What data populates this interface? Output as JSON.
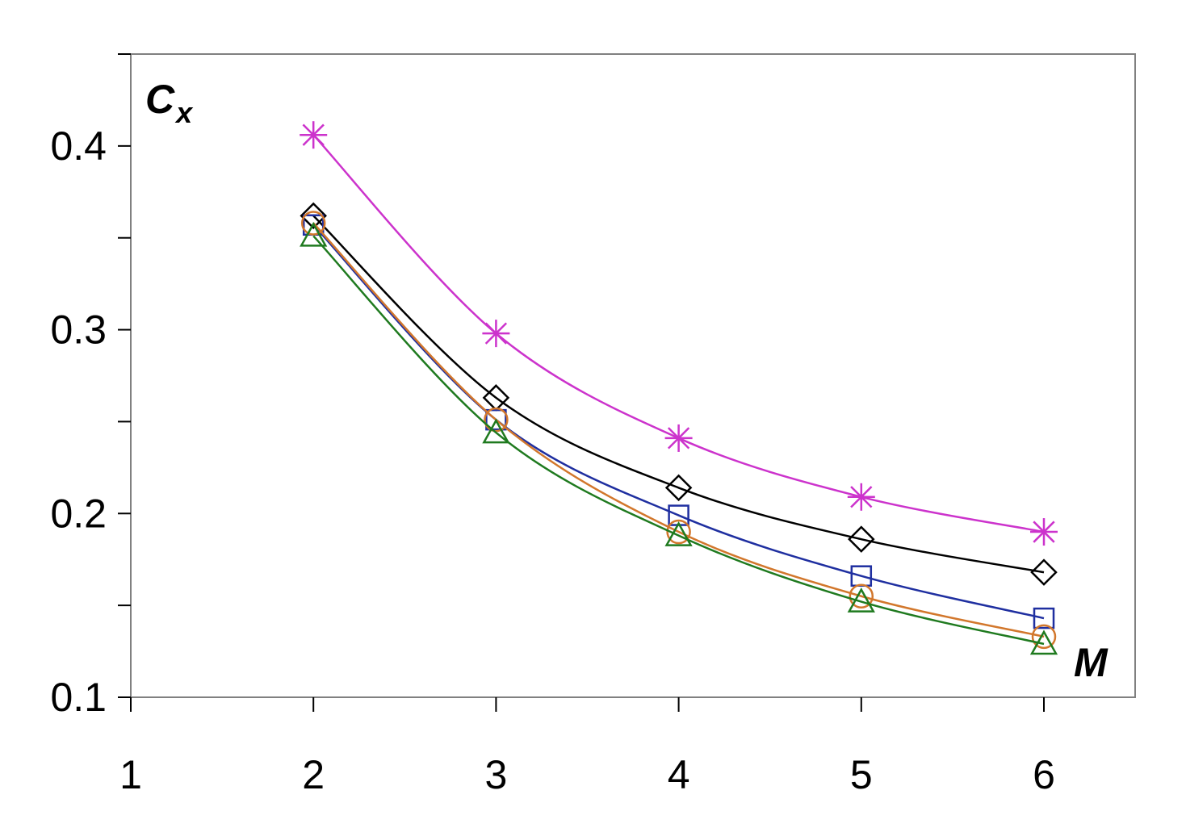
{
  "chart_data": {
    "type": "line",
    "xlabel": "M",
    "ylabel_main": "C",
    "ylabel_sub": "x",
    "xlim": [
      1,
      6.5
    ],
    "ylim": [
      0.1,
      0.45
    ],
    "xticks": [
      1,
      2,
      3,
      4,
      5,
      6
    ],
    "xtick_labels": [
      "1",
      "2",
      "3",
      "4",
      "5",
      "6"
    ],
    "yticks_labeled": [
      0.1,
      0.2,
      0.3,
      0.4
    ],
    "ytick_labels": [
      "0.1",
      "0.2",
      "0.3",
      "0.4"
    ],
    "yticks_minor": [
      0.15,
      0.25,
      0.35,
      0.45
    ],
    "grid": false,
    "legend": "none",
    "x": [
      2,
      3,
      4,
      5,
      6
    ],
    "series": [
      {
        "marker": "star",
        "color": "#cc33cc",
        "values": [
          0.406,
          0.298,
          0.241,
          0.209,
          0.19
        ]
      },
      {
        "marker": "diamond",
        "color": "#000000",
        "values": [
          0.362,
          0.263,
          0.214,
          0.186,
          0.168
        ]
      },
      {
        "marker": "square",
        "color": "#1f2fa0",
        "values": [
          0.357,
          0.251,
          0.199,
          0.166,
          0.143
        ]
      },
      {
        "marker": "circle",
        "color": "#d2772c",
        "values": [
          0.358,
          0.251,
          0.19,
          0.155,
          0.133
        ]
      },
      {
        "marker": "triangle",
        "color": "#1f7a1f",
        "values": [
          0.351,
          0.244,
          0.188,
          0.152,
          0.129
        ]
      }
    ]
  }
}
